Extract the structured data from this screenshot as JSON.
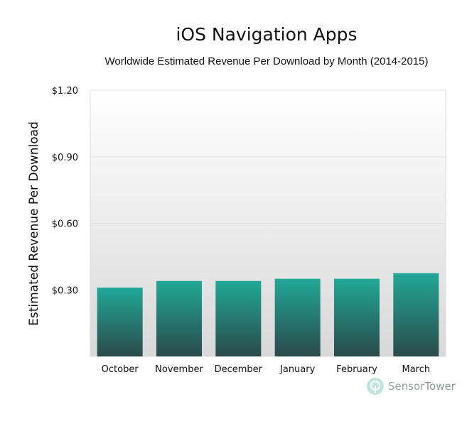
{
  "chart_data": {
    "type": "bar",
    "title": "iOS Navigation Apps",
    "subtitle": "Worldwide Estimated Revenue Per Download by Month (2014-2015)",
    "xlabel": "",
    "ylabel": "Estimated Revenue Per Download",
    "categories": [
      "October",
      "November",
      "December",
      "January",
      "February",
      "March"
    ],
    "values": [
      0.31,
      0.34,
      0.34,
      0.35,
      0.35,
      0.375
    ],
    "ylim": [
      0,
      1.2
    ],
    "yticks": [
      0.3,
      0.6,
      0.9,
      1.2
    ],
    "ytick_labels": [
      "$0.30",
      "$0.60",
      "$0.90",
      "$1.20"
    ],
    "grid": true,
    "colors": {
      "bar_top": "#21a897",
      "bar_bottom": "#2a4a4a",
      "plot_bg_top": "#ffffff",
      "plot_bg_bottom": "#d8d8d8"
    }
  },
  "branding": {
    "logo_text_part1": "Sensor",
    "logo_text_part2": "Tower"
  }
}
